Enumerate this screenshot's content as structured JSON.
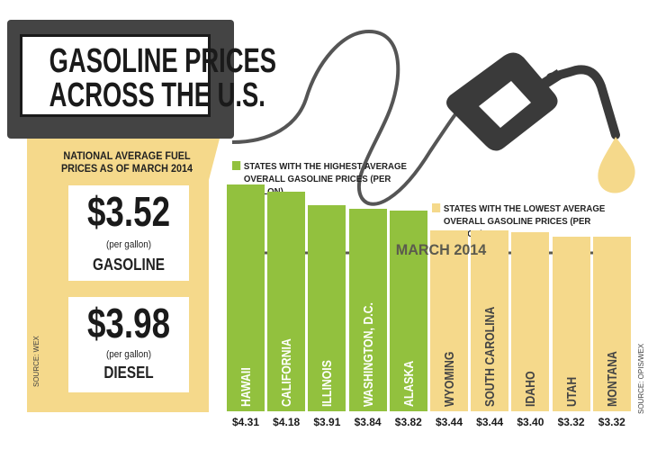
{
  "title": {
    "line1": "GASOLINE PRICES",
    "line2": "ACROSS THE U.S."
  },
  "national": {
    "heading": "NATIONAL AVERAGE FUEL PRICES AS OF MARCH 2014",
    "gasoline": {
      "price": "$3.52",
      "unit": "(per gallon)",
      "label": "GASOLINE"
    },
    "diesel": {
      "price": "$3.98",
      "unit": "(per gallon)",
      "label": "DIESEL"
    }
  },
  "sources": {
    "left": "SOURCE: WEX",
    "right": "SOURCE: OPIS/WEX"
  },
  "colors": {
    "high": "#92c13e",
    "low": "#f5d98b",
    "pump": "#f5d98b",
    "dark": "#3d3d3d",
    "hose": "#555555"
  },
  "icons": {
    "pump_nozzle": "gas-nozzle-icon",
    "drop": "fuel-drop-icon"
  },
  "chart_data": {
    "type": "bar",
    "annotation": "MARCH 2014",
    "legend": [
      {
        "name": "STATES WITH THE HIGHEST AVERAGE OVERALL GASOLINE PRICES (PER GALLON)",
        "color": "#92c13e"
      },
      {
        "name": "STATES WITH THE LOWEST AVERAGE OVERALL GASOLINE PRICES (PER GALLON)",
        "color": "#f5d98b"
      }
    ],
    "categories": [
      "HAWAII",
      "CALIFORNIA",
      "ILLINOIS",
      "WASHINGTON, D.C.",
      "ALASKA",
      "WYOMING",
      "SOUTH CAROLINA",
      "IDAHO",
      "UTAH",
      "MONTANA"
    ],
    "values": [
      4.31,
      4.18,
      3.91,
      3.84,
      3.82,
      3.44,
      3.44,
      3.4,
      3.32,
      3.32
    ],
    "value_labels": [
      "$4.31",
      "$4.18",
      "$3.91",
      "$3.84",
      "$3.82",
      "$3.44",
      "$3.44",
      "$3.40",
      "$3.32",
      "$3.32"
    ],
    "groups": [
      "high",
      "high",
      "high",
      "high",
      "high",
      "low",
      "low",
      "low",
      "low",
      "low"
    ],
    "ylim": [
      0,
      4.4
    ],
    "xlabel": "",
    "ylabel": ""
  }
}
